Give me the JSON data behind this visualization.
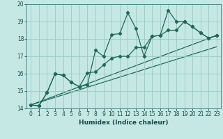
{
  "xlabel": "Humidex (Indice chaleur)",
  "bg_color": "#c5e8e5",
  "grid_color": "#9ac8c5",
  "line_color": "#206858",
  "xlim": [
    -0.5,
    23.5
  ],
  "ylim": [
    14,
    20
  ],
  "xticks": [
    0,
    1,
    2,
    3,
    4,
    5,
    6,
    7,
    8,
    9,
    10,
    11,
    12,
    13,
    14,
    15,
    16,
    17,
    18,
    19,
    20,
    21,
    22,
    23
  ],
  "yticks": [
    14,
    15,
    16,
    17,
    18,
    19,
    20
  ],
  "series1_x": [
    0,
    1,
    2,
    3,
    4,
    5,
    6,
    7,
    8,
    9,
    10,
    11,
    12,
    13,
    14,
    15,
    16,
    17,
    18,
    19,
    20,
    21,
    22,
    23
  ],
  "series1_y": [
    14.2,
    14.15,
    14.9,
    16.0,
    15.9,
    15.5,
    15.25,
    15.35,
    17.35,
    17.0,
    18.25,
    18.3,
    19.5,
    18.6,
    17.0,
    18.15,
    18.2,
    19.65,
    19.0,
    19.0,
    18.7,
    18.35,
    18.05,
    18.2
  ],
  "series2_x": [
    0,
    1,
    2,
    3,
    4,
    5,
    6,
    7,
    8,
    9,
    10,
    11,
    12,
    13,
    14,
    15,
    16,
    17,
    18,
    19,
    20,
    21,
    22,
    23
  ],
  "series2_y": [
    14.2,
    14.15,
    14.9,
    16.0,
    15.9,
    15.5,
    15.25,
    16.05,
    16.1,
    16.5,
    16.9,
    17.0,
    17.0,
    17.5,
    17.5,
    18.15,
    18.2,
    18.5,
    18.5,
    19.0,
    18.7,
    18.35,
    18.05,
    18.2
  ],
  "trend1_x": [
    0,
    23
  ],
  "trend1_y": [
    14.2,
    18.2
  ],
  "trend2_x": [
    0,
    23
  ],
  "trend2_y": [
    14.2,
    17.55
  ]
}
